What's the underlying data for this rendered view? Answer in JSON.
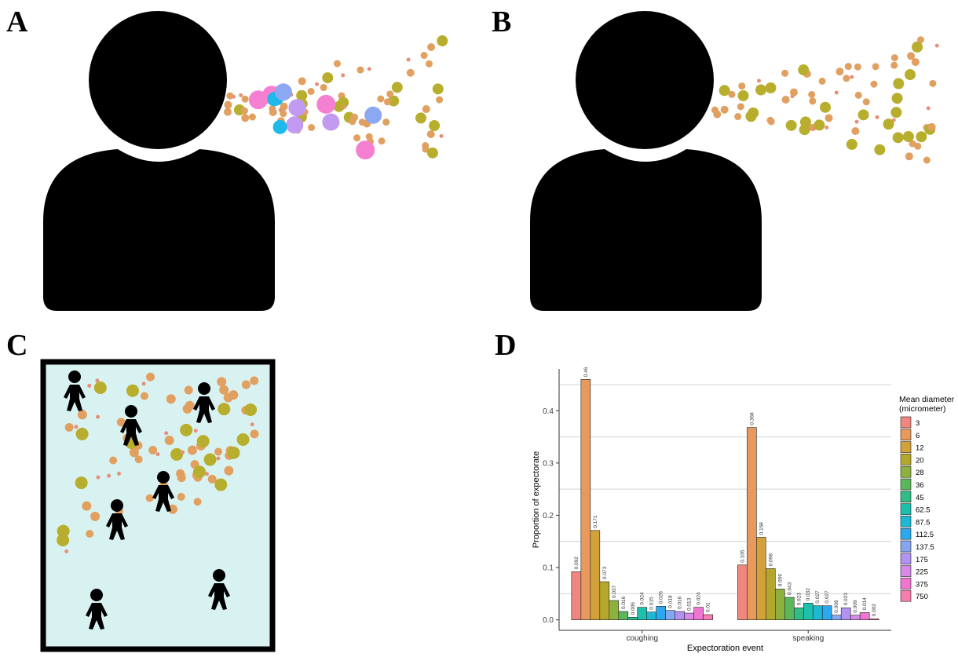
{
  "panels": [
    "A",
    "B",
    "C",
    "D"
  ],
  "chart_data": {
    "type": "bar",
    "x_label": "Expectoration event",
    "y_label": "Proportion of expectorate",
    "legend_title": [
      "Mean diameter",
      "(micrometer)"
    ],
    "categories": [
      "coughing",
      "speaking"
    ],
    "ylim": [
      -0.02,
      0.48
    ],
    "yticks": [
      {
        "value": 0,
        "label": "0.0"
      },
      0.1,
      0.2,
      0.3,
      0.4
    ],
    "grid_minor": [
      0.05,
      0.15,
      0.25,
      0.35,
      0.45
    ],
    "series": [
      {
        "name": "3",
        "color": "#F0877E",
        "values": [
          0.092,
          0.105
        ]
      },
      {
        "name": "6",
        "color": "#E79A5C",
        "values": [
          0.46,
          0.368
        ]
      },
      {
        "name": "12",
        "color": "#D3A13A",
        "values": [
          0.171,
          0.158
        ]
      },
      {
        "name": "20",
        "color": "#B5A72E",
        "values": [
          0.073,
          0.098
        ]
      },
      {
        "name": "28",
        "color": "#8DB13F",
        "values": [
          0.037,
          0.059
        ]
      },
      {
        "name": "36",
        "color": "#5CB65C",
        "values": [
          0.016,
          0.043
        ]
      },
      {
        "name": "45",
        "color": "#2FBC86",
        "values": [
          0.005,
          0.023
        ]
      },
      {
        "name": "62.5",
        "color": "#1FBFAE",
        "values": [
          0.024,
          0.032
        ]
      },
      {
        "name": "87.5",
        "color": "#1DB9D4",
        "values": [
          0.015,
          0.027
        ]
      },
      {
        "name": "112.5",
        "color": "#2CA9EE",
        "values": [
          0.026,
          0.027
        ]
      },
      {
        "name": "137.5",
        "color": "#86A6F2",
        "values": [
          0.018,
          0.009
        ]
      },
      {
        "name": "175",
        "color": "#B293F2",
        "values": [
          0.016,
          0.023
        ]
      },
      {
        "name": "225",
        "color": "#D689E6",
        "values": [
          0.013,
          0.009
        ]
      },
      {
        "name": "375",
        "color": "#F075D0",
        "values": [
          0.024,
          0.014
        ]
      },
      {
        "name": "750",
        "color": "#F77EAE",
        "values": [
          0.01,
          0.002
        ]
      }
    ]
  }
}
